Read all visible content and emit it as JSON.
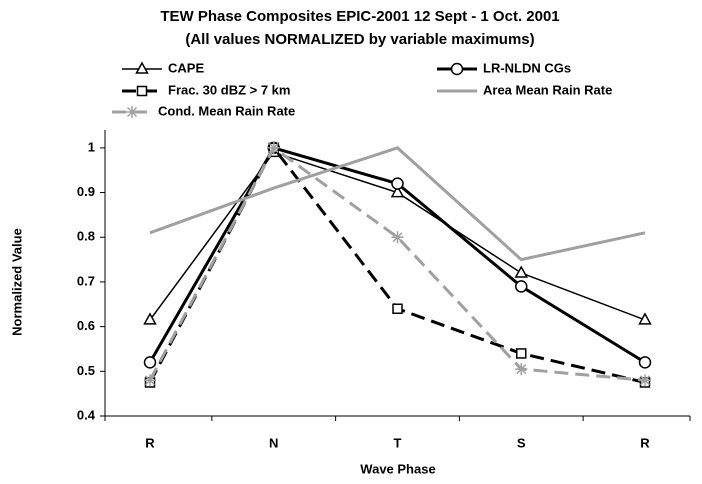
{
  "chart_data": {
    "type": "line",
    "title": "TEW Phase Composites EPIC-2001 12 Sept - 1 Oct. 2001",
    "subtitle": "(All values NORMALIZED by variable maximums)",
    "x_label": "Wave Phase",
    "y_label": "Normalized Value",
    "categories": [
      "R",
      "N",
      "T",
      "S",
      "R"
    ],
    "ylim": [
      0.4,
      1.04
    ],
    "yticks": [
      0.4,
      0.5,
      0.6,
      0.7,
      0.8,
      0.9,
      1
    ],
    "grid": false,
    "series": [
      {
        "name": "CAPE",
        "color": "#000000",
        "width": 1.5,
        "dash": false,
        "marker": "triangle",
        "values": [
          0.615,
          0.99,
          0.9,
          0.72,
          0.615
        ]
      },
      {
        "name": "LR-NLDN CGs",
        "color": "#000000",
        "width": 3,
        "dash": false,
        "marker": "circle",
        "values": [
          0.52,
          1.0,
          0.92,
          0.69,
          0.52
        ]
      },
      {
        "name": "Frac. 30 dBZ > 7 km",
        "color": "#000000",
        "width": 3,
        "dash": true,
        "marker": "square",
        "values": [
          0.475,
          1.0,
          0.64,
          0.54,
          0.475
        ]
      },
      {
        "name": "Area Mean Rain Rate",
        "color": "#a0a0a0",
        "width": 3,
        "dash": false,
        "marker": "none",
        "values": [
          0.81,
          0.91,
          1.0,
          0.75,
          0.81
        ]
      },
      {
        "name": "Cond. Mean Rain Rate",
        "color": "#a0a0a0",
        "width": 3,
        "dash": true,
        "marker": "asterisk",
        "values": [
          0.48,
          1.0,
          0.8,
          0.505,
          0.48
        ]
      }
    ]
  }
}
